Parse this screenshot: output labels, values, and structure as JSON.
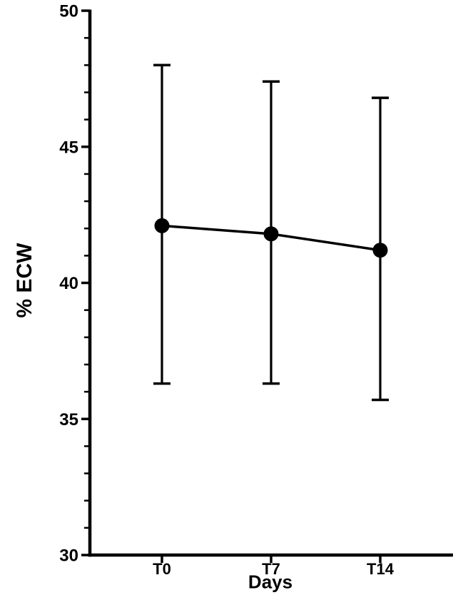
{
  "figure": {
    "background": "#ffffff",
    "ink_color": "#000000"
  },
  "chart_data": {
    "type": "line",
    "title": "",
    "xlabel": "Days",
    "ylabel": "% ECW",
    "categories": [
      "T0",
      "T7",
      "T14"
    ],
    "series": [
      {
        "name": "% ECW",
        "values": [
          42.1,
          41.8,
          41.2
        ],
        "error_upper": [
          48.0,
          47.4,
          46.8
        ],
        "error_lower": [
          36.3,
          36.3,
          35.7
        ]
      }
    ],
    "ylim": [
      30,
      50
    ],
    "ytick_major": [
      30,
      35,
      40,
      45,
      50
    ],
    "ytick_minor_step": 1,
    "marker": "filled-circle",
    "error_bar_style": "capped",
    "grid": false,
    "legend": "none",
    "color": "#000000"
  }
}
